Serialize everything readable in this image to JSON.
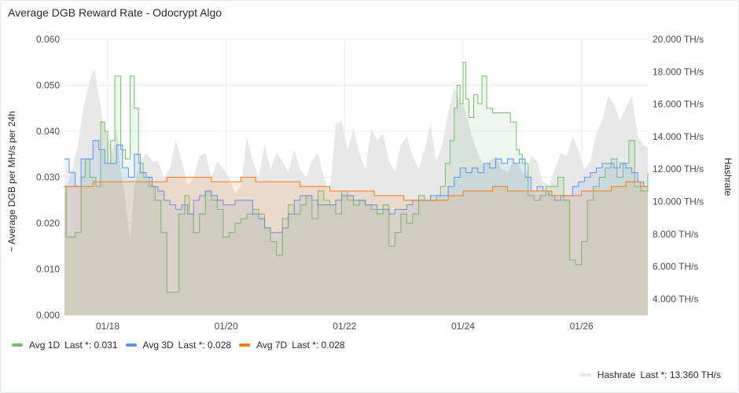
{
  "panel": {
    "title": "Average DGB Reward Rate - Odocrypt Algo"
  },
  "legend": {
    "avg1d": {
      "name": "Avg 1D",
      "last": "Last *: 0.031",
      "color": "#73bf69"
    },
    "avg3d": {
      "name": "Avg 3D",
      "last": "Last *: 0.028",
      "color": "#5794f2"
    },
    "avg7d": {
      "name": "Avg 7D",
      "last": "Last *: 0.028",
      "color": "#ff780a"
    },
    "hashrate": {
      "name": "Hashrate",
      "last": "Last *: 13.360 TH/s",
      "color": "#e6e6e6"
    }
  },
  "chart_data": {
    "type": "line",
    "title": "Average DGB Reward Rate - Odocrypt Algo",
    "ylabel": "~ Average DGB per MH/s per 24h",
    "y2label": "Hashrate",
    "ylim": [
      0,
      0.06
    ],
    "y2lim": [
      3000,
      20000
    ],
    "xlim": [
      17.27,
      27.12
    ],
    "yticks": [
      "0.000",
      "0.010",
      "0.020",
      "0.030",
      "0.040",
      "0.050",
      "0.060"
    ],
    "y2ticks": [
      "4.000 TH/s",
      "6.000 TH/s",
      "8.000 TH/s",
      "10.000 TH/s",
      "12.000 TH/s",
      "14.000 TH/s",
      "16.000 TH/s",
      "18.000 TH/s",
      "20.000 TH/s"
    ],
    "y2tick_values": [
      4000,
      6000,
      8000,
      10000,
      12000,
      14000,
      16000,
      18000,
      20000
    ],
    "xticks": [
      "01/18",
      "01/20",
      "01/22",
      "01/24",
      "01/26"
    ],
    "xtick_values": [
      18,
      20,
      22,
      24,
      26
    ],
    "grid": true,
    "legend_position": "bottom",
    "series": [
      {
        "name": "Avg 1D",
        "axis": "left",
        "color": "#73bf69",
        "x": [
          17.27,
          17.3,
          17.45,
          17.55,
          17.62,
          17.7,
          17.8,
          17.88,
          17.95,
          18.0,
          18.05,
          18.12,
          18.22,
          18.3,
          18.38,
          18.45,
          18.52,
          18.6,
          18.7,
          18.8,
          18.9,
          19.0,
          19.1,
          19.2,
          19.3,
          19.38,
          19.45,
          19.55,
          19.65,
          19.75,
          19.85,
          19.95,
          20.05,
          20.15,
          20.25,
          20.35,
          20.45,
          20.55,
          20.65,
          20.75,
          20.85,
          20.95,
          21.05,
          21.15,
          21.25,
          21.35,
          21.45,
          21.55,
          21.65,
          21.75,
          21.85,
          21.95,
          22.05,
          22.15,
          22.25,
          22.35,
          22.45,
          22.55,
          22.65,
          22.75,
          22.85,
          22.95,
          23.05,
          23.15,
          23.25,
          23.35,
          23.45,
          23.55,
          23.62,
          23.7,
          23.78,
          23.85,
          23.9,
          23.95,
          24.0,
          24.05,
          24.1,
          24.18,
          24.25,
          24.32,
          24.4,
          24.5,
          24.6,
          24.7,
          24.8,
          24.9,
          24.95,
          25.0,
          25.1,
          25.2,
          25.3,
          25.4,
          25.5,
          25.6,
          25.7,
          25.8,
          25.9,
          26.0,
          26.1,
          26.2,
          26.3,
          26.4,
          26.5,
          26.6,
          26.7,
          26.8,
          26.9,
          27.0,
          27.12
        ],
        "values": [
          0.028,
          0.017,
          0.018,
          0.03,
          0.034,
          0.03,
          0.028,
          0.042,
          0.04,
          0.033,
          0.038,
          0.052,
          0.036,
          0.034,
          0.052,
          0.045,
          0.033,
          0.03,
          0.028,
          0.025,
          0.018,
          0.005,
          0.005,
          0.022,
          0.026,
          0.022,
          0.018,
          0.022,
          0.027,
          0.025,
          0.023,
          0.017,
          0.018,
          0.02,
          0.021,
          0.022,
          0.023,
          0.022,
          0.019,
          0.016,
          0.013,
          0.021,
          0.024,
          0.022,
          0.024,
          0.026,
          0.021,
          0.027,
          0.025,
          0.024,
          0.022,
          0.027,
          0.025,
          0.024,
          0.025,
          0.024,
          0.023,
          0.022,
          0.024,
          0.015,
          0.018,
          0.022,
          0.02,
          0.022,
          0.026,
          0.025,
          0.025,
          0.026,
          0.028,
          0.033,
          0.038,
          0.045,
          0.05,
          0.046,
          0.055,
          0.047,
          0.043,
          0.048,
          0.046,
          0.052,
          0.045,
          0.044,
          0.044,
          0.044,
          0.042,
          0.036,
          0.035,
          0.033,
          0.026,
          0.025,
          0.026,
          0.028,
          0.028,
          0.03,
          0.025,
          0.012,
          0.011,
          0.016,
          0.025,
          0.028,
          0.03,
          0.032,
          0.034,
          0.03,
          0.033,
          0.038,
          0.028,
          0.027,
          0.031
        ]
      },
      {
        "name": "Avg 3D",
        "axis": "left",
        "color": "#5794f2",
        "x": [
          17.27,
          17.35,
          17.45,
          17.55,
          17.65,
          17.75,
          17.85,
          17.95,
          18.05,
          18.15,
          18.25,
          18.35,
          18.45,
          18.55,
          18.65,
          18.75,
          18.85,
          18.95,
          19.05,
          19.15,
          19.25,
          19.35,
          19.45,
          19.55,
          19.65,
          19.75,
          19.85,
          19.95,
          20.05,
          20.15,
          20.25,
          20.35,
          20.45,
          20.55,
          20.65,
          20.75,
          20.85,
          20.95,
          21.05,
          21.15,
          21.25,
          21.35,
          21.45,
          21.55,
          21.65,
          21.75,
          21.85,
          21.95,
          22.05,
          22.15,
          22.25,
          22.35,
          22.45,
          22.55,
          22.65,
          22.75,
          22.85,
          22.95,
          23.05,
          23.15,
          23.25,
          23.35,
          23.45,
          23.55,
          23.65,
          23.75,
          23.85,
          23.95,
          24.05,
          24.15,
          24.25,
          24.35,
          24.45,
          24.55,
          24.65,
          24.75,
          24.85,
          24.95,
          25.05,
          25.15,
          25.25,
          25.35,
          25.45,
          25.55,
          25.65,
          25.75,
          25.85,
          25.95,
          26.05,
          26.15,
          26.25,
          26.35,
          26.45,
          26.55,
          26.65,
          26.75,
          26.85,
          26.95,
          27.05,
          27.12
        ],
        "values": [
          0.034,
          0.031,
          0.028,
          0.034,
          0.034,
          0.038,
          0.036,
          0.033,
          0.033,
          0.037,
          0.032,
          0.03,
          0.035,
          0.031,
          0.03,
          0.028,
          0.027,
          0.025,
          0.024,
          0.023,
          0.024,
          0.022,
          0.025,
          0.026,
          0.027,
          0.026,
          0.025,
          0.024,
          0.024,
          0.025,
          0.025,
          0.025,
          0.022,
          0.021,
          0.019,
          0.018,
          0.018,
          0.019,
          0.022,
          0.025,
          0.026,
          0.026,
          0.025,
          0.024,
          0.024,
          0.024,
          0.025,
          0.026,
          0.026,
          0.025,
          0.025,
          0.024,
          0.024,
          0.023,
          0.023,
          0.022,
          0.023,
          0.023,
          0.024,
          0.025,
          0.025,
          0.025,
          0.026,
          0.026,
          0.026,
          0.028,
          0.03,
          0.032,
          0.031,
          0.032,
          0.031,
          0.033,
          0.032,
          0.034,
          0.033,
          0.034,
          0.033,
          0.034,
          0.03,
          0.027,
          0.028,
          0.027,
          0.026,
          0.025,
          0.026,
          0.026,
          0.028,
          0.029,
          0.03,
          0.031,
          0.032,
          0.033,
          0.033,
          0.032,
          0.033,
          0.032,
          0.031,
          0.029,
          0.028,
          0.028
        ]
      },
      {
        "name": "Avg 7D",
        "axis": "left",
        "color": "#ff780a",
        "x": [
          17.27,
          17.5,
          17.75,
          18.0,
          18.25,
          18.5,
          18.75,
          19.0,
          19.25,
          19.5,
          19.75,
          20.0,
          20.25,
          20.5,
          20.75,
          21.0,
          21.25,
          21.5,
          21.75,
          22.0,
          22.25,
          22.5,
          22.75,
          23.0,
          23.25,
          23.5,
          23.75,
          24.0,
          24.25,
          24.5,
          24.75,
          25.0,
          25.25,
          25.5,
          25.75,
          26.0,
          26.25,
          26.5,
          26.75,
          27.0,
          27.12
        ],
        "values": [
          0.028,
          0.028,
          0.029,
          0.029,
          0.029,
          0.029,
          0.029,
          0.03,
          0.03,
          0.03,
          0.029,
          0.029,
          0.03,
          0.029,
          0.029,
          0.029,
          0.028,
          0.028,
          0.027,
          0.027,
          0.027,
          0.026,
          0.026,
          0.025,
          0.025,
          0.025,
          0.026,
          0.027,
          0.027,
          0.028,
          0.027,
          0.027,
          0.027,
          0.026,
          0.026,
          0.027,
          0.027,
          0.028,
          0.029,
          0.028,
          0.028
        ]
      },
      {
        "name": "Hashrate",
        "axis": "right",
        "color": "#e6e6e6",
        "x": [
          17.27,
          17.4,
          17.5,
          17.6,
          17.7,
          17.78,
          17.85,
          17.92,
          18.0,
          18.08,
          18.15,
          18.22,
          18.3,
          18.38,
          18.45,
          18.55,
          18.65,
          18.75,
          18.85,
          18.95,
          19.05,
          19.15,
          19.25,
          19.35,
          19.45,
          19.55,
          19.65,
          19.75,
          19.85,
          19.95,
          20.05,
          20.15,
          20.25,
          20.35,
          20.45,
          20.55,
          20.65,
          20.75,
          20.85,
          20.95,
          21.05,
          21.15,
          21.25,
          21.35,
          21.45,
          21.55,
          21.65,
          21.75,
          21.85,
          21.95,
          22.05,
          22.15,
          22.25,
          22.35,
          22.45,
          22.55,
          22.65,
          22.75,
          22.85,
          22.95,
          23.05,
          23.15,
          23.25,
          23.35,
          23.45,
          23.55,
          23.65,
          23.75,
          23.85,
          23.95,
          24.05,
          24.15,
          24.25,
          24.35,
          24.45,
          24.55,
          24.65,
          24.75,
          24.85,
          24.95,
          25.05,
          25.15,
          25.25,
          25.35,
          25.45,
          25.55,
          25.65,
          25.75,
          25.85,
          25.95,
          26.05,
          26.15,
          26.25,
          26.35,
          26.45,
          26.55,
          26.65,
          26.75,
          26.85,
          26.95,
          27.05,
          27.12
        ],
        "values": [
          10500,
          12000,
          13500,
          16000,
          17500,
          18200,
          16500,
          15000,
          14000,
          13000,
          14500,
          12000,
          10000,
          7500,
          11000,
          12500,
          13000,
          12500,
          12500,
          11500,
          12000,
          13800,
          12500,
          11000,
          11500,
          12800,
          13000,
          11500,
          12500,
          12000,
          11500,
          10500,
          11000,
          14000,
          12500,
          11500,
          13500,
          12000,
          13000,
          12500,
          11800,
          13200,
          12000,
          11500,
          12500,
          13000,
          11500,
          10500,
          14800,
          15000,
          13200,
          14500,
          13000,
          12000,
          14500,
          13800,
          14200,
          12500,
          11800,
          13500,
          14000,
          12800,
          12000,
          13200,
          14800,
          12500,
          13500,
          15500,
          17000,
          16200,
          15500,
          14000,
          13000,
          12200,
          12500,
          12800,
          12000,
          11800,
          12500,
          12200,
          11500,
          12800,
          12500,
          11200,
          11000,
          12000,
          13000,
          12800,
          14000,
          13200,
          12000,
          12500,
          14200,
          15000,
          16500,
          16000,
          15000,
          15800,
          16500,
          14000,
          13500,
          13360
        ]
      }
    ]
  }
}
